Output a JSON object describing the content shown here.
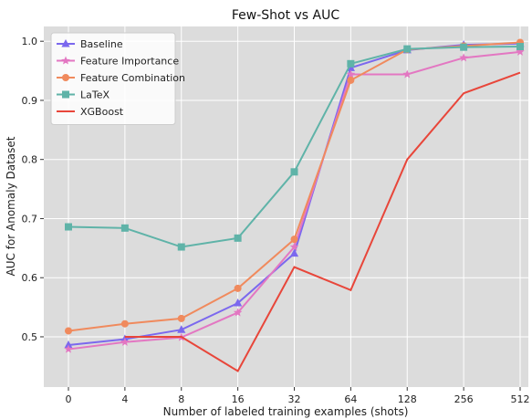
{
  "chart_data": {
    "type": "line",
    "title": "Few-Shot vs AUC",
    "xlabel": "Number of labeled training examples (shots)",
    "ylabel": "AUC for Anomaly Dataset",
    "categories": [
      "0",
      "4",
      "8",
      "16",
      "32",
      "64",
      "128",
      "256",
      "512"
    ],
    "ylim": [
      0.415,
      1.025
    ],
    "yticks": [
      0.5,
      0.6,
      0.7,
      0.8,
      0.9,
      1.0
    ],
    "ytick_labels": [
      "0.5",
      "0.6",
      "0.7",
      "0.8",
      "0.9",
      "1.0"
    ],
    "grid": true,
    "background": "#dcdcdc",
    "legend_position": "top-left",
    "series": [
      {
        "name": "Baseline",
        "color": "#7b68ee",
        "marker": "triangle",
        "values": [
          0.486,
          0.496,
          0.512,
          0.557,
          0.641,
          0.955,
          0.985,
          0.994,
          0.996
        ]
      },
      {
        "name": "Feature Importance",
        "color": "#e377c2",
        "marker": "star",
        "values": [
          0.479,
          0.491,
          0.499,
          0.541,
          0.652,
          0.944,
          0.944,
          0.972,
          0.982
        ]
      },
      {
        "name": "Feature Combination",
        "color": "#f08a5d",
        "marker": "circle",
        "values": [
          0.51,
          0.522,
          0.531,
          0.582,
          0.665,
          0.934,
          0.986,
          0.992,
          0.998
        ]
      },
      {
        "name": "LaTeX",
        "color": "#5fb3a8",
        "marker": "square",
        "values": [
          0.686,
          0.684,
          0.652,
          0.667,
          0.779,
          0.962,
          0.987,
          0.99,
          0.991
        ]
      },
      {
        "name": "XGBoost",
        "color": "#e8463a",
        "marker": "none",
        "values": [
          null,
          0.5,
          0.5,
          0.442,
          0.618,
          0.579,
          0.8,
          0.912,
          0.947
        ]
      }
    ]
  }
}
